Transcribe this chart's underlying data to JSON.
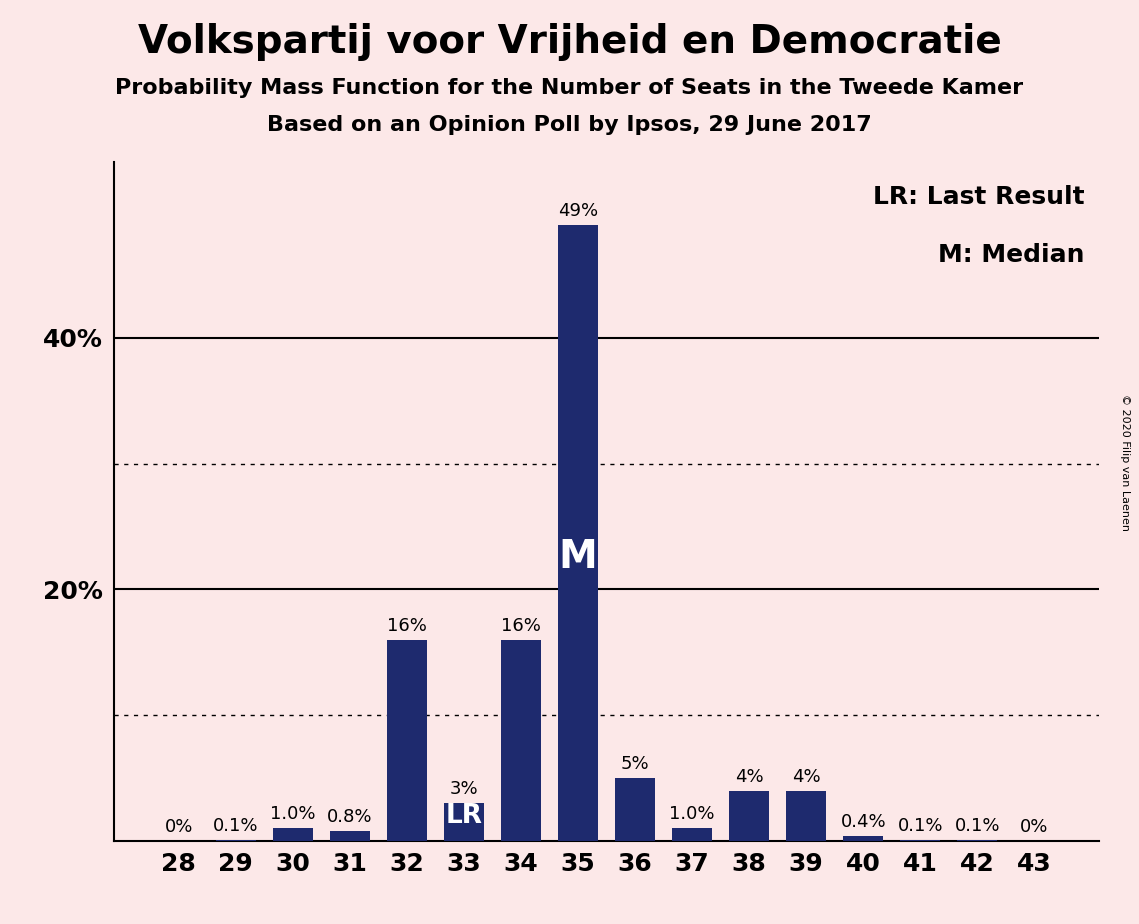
{
  "title": "Volkspartij voor Vrijheid en Democratie",
  "subtitle1": "Probability Mass Function for the Number of Seats in the Tweede Kamer",
  "subtitle2": "Based on an Opinion Poll by Ipsos, 29 June 2017",
  "copyright": "© 2020 Filip van Laenen",
  "seats": [
    28,
    29,
    30,
    31,
    32,
    33,
    34,
    35,
    36,
    37,
    38,
    39,
    40,
    41,
    42,
    43
  ],
  "probabilities": [
    0.0,
    0.1,
    1.0,
    0.8,
    16.0,
    3.0,
    16.0,
    49.0,
    5.0,
    1.0,
    4.0,
    4.0,
    0.4,
    0.1,
    0.1,
    0.0
  ],
  "labels": [
    "0%",
    "0.1%",
    "1.0%",
    "0.8%",
    "16%",
    "3%",
    "16%",
    "49%",
    "5%",
    "1.0%",
    "4%",
    "4%",
    "0.4%",
    "0.1%",
    "0.1%",
    "0%"
  ],
  "bar_color": "#1e2a6e",
  "background_color": "#fce8e8",
  "last_result_seat": 33,
  "median_seat": 35,
  "ylim": [
    0,
    54
  ],
  "yticks": [
    20,
    40
  ],
  "ytick_labels": [
    "20%",
    "40%"
  ],
  "solid_gridlines": [
    20,
    40
  ],
  "dotted_gridlines": [
    10,
    30
  ],
  "legend_text1": "LR: Last Result",
  "legend_text2": "M: Median",
  "lr_label": "LR",
  "median_label": "M",
  "title_fontsize": 28,
  "subtitle_fontsize": 16,
  "tick_fontsize": 18,
  "legend_fontsize": 18,
  "bar_label_fontsize": 13
}
